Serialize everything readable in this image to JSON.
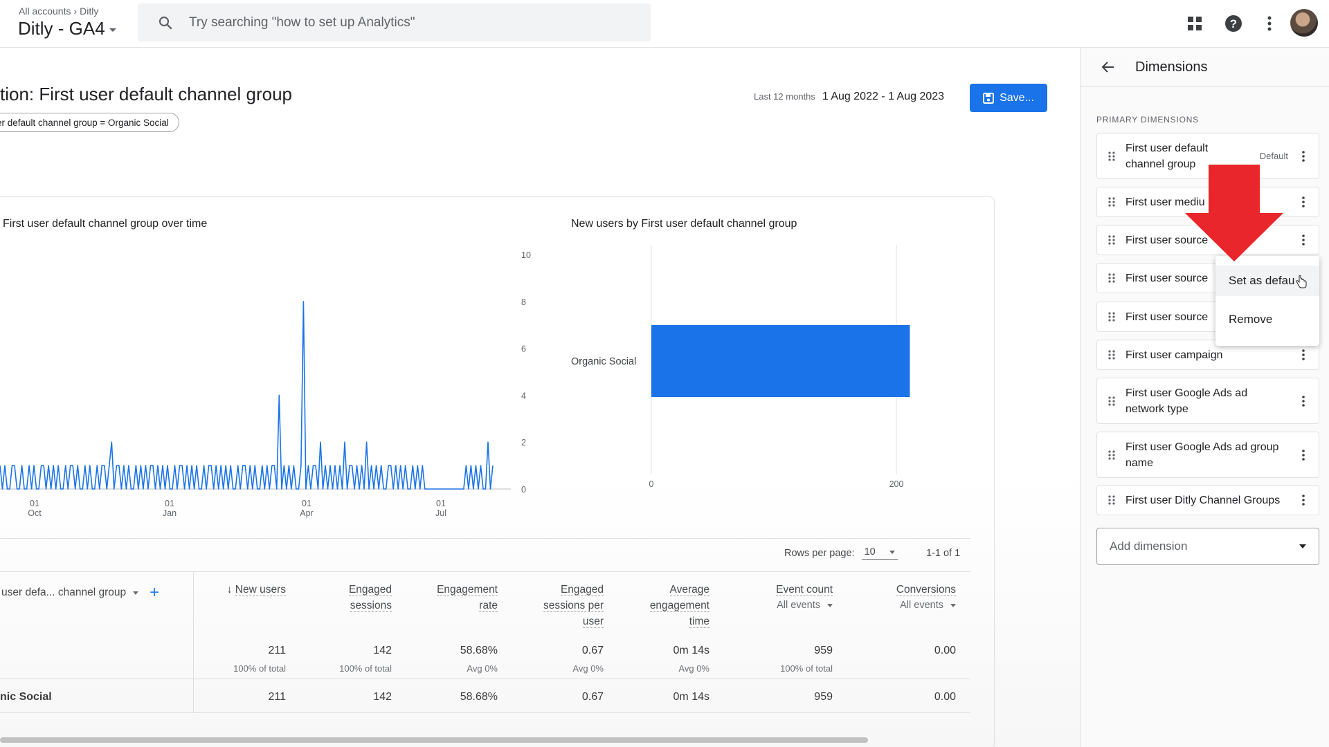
{
  "header": {
    "breadcrumb": [
      "All accounts",
      "Ditly"
    ],
    "property_name": "Ditly - GA4",
    "search_placeholder": "Try searching \"how to set up Analytics\""
  },
  "report": {
    "title": "tion: First user default channel group",
    "filter_chip": "er default channel group = Organic Social",
    "date_label": "Last 12 months",
    "date_range": "1 Aug 2022 - 1 Aug 2023",
    "save_label": "Save..."
  },
  "charts": {
    "line_title": "First user default channel group over time",
    "bar_title": "New users by First user default channel group"
  },
  "chart_data": [
    {
      "type": "line",
      "title": "First user default channel group over time",
      "y_ticks": [
        0,
        2,
        4,
        6,
        8,
        10
      ],
      "x_ticks": [
        [
          "01",
          "Oct"
        ],
        [
          "01",
          "Jan"
        ],
        [
          "01",
          "Apr"
        ],
        [
          "01",
          "Jul"
        ]
      ],
      "ylim": [
        0,
        10
      ],
      "color": "#1a73e8",
      "peak_value": 8,
      "series": [
        {
          "values": [
            1,
            0,
            1,
            0,
            0,
            1,
            1,
            0,
            0,
            1,
            0,
            0,
            1,
            0,
            1,
            0,
            0,
            1,
            1,
            0,
            1,
            0,
            1,
            0,
            1,
            0,
            0,
            1,
            0,
            1,
            1,
            0,
            1,
            0,
            0,
            1,
            0,
            1,
            0,
            0,
            1,
            0,
            1,
            1,
            0,
            1,
            2,
            0,
            1,
            1,
            0,
            1,
            0,
            1,
            0,
            0,
            1,
            0,
            1,
            0,
            1,
            0,
            1,
            1,
            0,
            1,
            0,
            1,
            0,
            1,
            0,
            0,
            1,
            0,
            1,
            1,
            0,
            1,
            0,
            1,
            0,
            1,
            0,
            0,
            1,
            0,
            1,
            1,
            0,
            1,
            0,
            1,
            0,
            1,
            0,
            1,
            0,
            0,
            1,
            0,
            1,
            1,
            0,
            1,
            0,
            1,
            0,
            0,
            1,
            0,
            1,
            0,
            1,
            1,
            0,
            4,
            0,
            1,
            0,
            1,
            0,
            1,
            0,
            0,
            1,
            8,
            0,
            1,
            0,
            1,
            1,
            0,
            2,
            0,
            1,
            0,
            1,
            0,
            1,
            0,
            1,
            0,
            2,
            0,
            1,
            1,
            0,
            1,
            0,
            1,
            0,
            2,
            0,
            1,
            0,
            1,
            0,
            1,
            0,
            0,
            1,
            1,
            0,
            1,
            0,
            1,
            0,
            1,
            0,
            0,
            1,
            0,
            1,
            0,
            1,
            0,
            0,
            0,
            0,
            0,
            0,
            0,
            0,
            0,
            0,
            0,
            0,
            0,
            0,
            0,
            0,
            0,
            1,
            0,
            1,
            0,
            1,
            0,
            1,
            0,
            0,
            2,
            0,
            1
          ]
        }
      ]
    },
    {
      "type": "bar",
      "title": "New users by First user default channel group",
      "categories": [
        "Organic Social"
      ],
      "values": [
        211
      ],
      "x_ticks": [
        0,
        200
      ],
      "color": "#1a73e8"
    }
  ],
  "table": {
    "rows_per_page_label": "Rows per page:",
    "rows_per_page": "10",
    "pagination": "1-1 of 1",
    "dimension_header": "user defa... channel group",
    "columns": [
      {
        "label": [
          "New users"
        ],
        "sorted": true,
        "total": "211",
        "total_sub": "100% of total",
        "row": "211"
      },
      {
        "label": [
          "Engaged",
          "sessions"
        ],
        "total": "142",
        "total_sub": "100% of total",
        "row": "142"
      },
      {
        "label": [
          "Engagement",
          "rate"
        ],
        "total": "58.68%",
        "total_sub": "Avg 0%",
        "row": "58.68%"
      },
      {
        "label": [
          "Engaged",
          "sessions per",
          "user"
        ],
        "total": "0.67",
        "total_sub": "Avg 0%",
        "row": "0.67"
      },
      {
        "label": [
          "Average",
          "engagement",
          "time"
        ],
        "total": "0m 14s",
        "total_sub": "Avg 0%",
        "row": "0m 14s"
      },
      {
        "label": [
          "Event count"
        ],
        "sub": "All events",
        "total": "959",
        "total_sub": "100% of total",
        "row": "959"
      },
      {
        "label": [
          "Conversions"
        ],
        "sub": "All events",
        "total": "0.00",
        "total_sub": "",
        "row": "0.00"
      }
    ],
    "row_label": "nic Social"
  },
  "panel": {
    "title": "Dimensions",
    "section": "PRIMARY DIMENSIONS",
    "default_tag": "Default",
    "items": [
      "First user default channel group",
      "First user medium",
      "First user source",
      "First user source",
      "First user source",
      "First user campaign",
      "First user Google Ads ad network type",
      "First user Google Ads ad group name",
      "First user Ditly Channel Groups"
    ],
    "visible_items": [
      [
        "First user default",
        "channel group"
      ],
      [
        "First user mediu"
      ],
      [
        "First user source"
      ],
      [
        "First user source"
      ],
      [
        "First user source"
      ],
      [
        "First user campaign"
      ],
      [
        "First user Google Ads ad",
        "network type"
      ],
      [
        "First user Google Ads ad group",
        "name"
      ],
      [
        "First user Ditly Channel Groups"
      ]
    ],
    "add_dimension": "Add dimension"
  },
  "context_menu": {
    "items": [
      "Set as defau",
      "Remove"
    ]
  },
  "colors": {
    "accent": "#1a73e8",
    "arrow": "#e8262b"
  }
}
